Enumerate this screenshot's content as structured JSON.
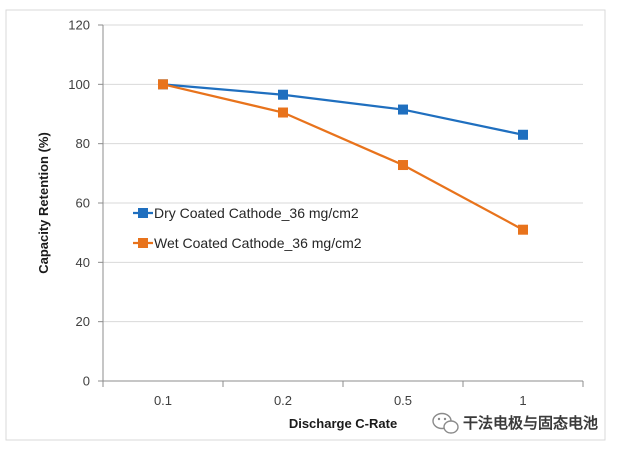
{
  "chart_data": {
    "type": "line",
    "categories": [
      "0.1",
      "0.2",
      "0.5",
      "1"
    ],
    "series": [
      {
        "name": "Dry Coated Cathode_36 mg/cm2",
        "values": [
          100,
          96.5,
          91.5,
          83
        ],
        "color": "#1f6fbf",
        "marker": "square"
      },
      {
        "name": "Wet Coated Cathode_36 mg/cm2",
        "values": [
          100,
          90.5,
          72.8,
          51
        ],
        "color": "#e8731c",
        "marker": "square"
      }
    ],
    "title": "",
    "xlabel": "Discharge C-Rate",
    "ylabel": "Capacity Retention (%)",
    "ylim": [
      0,
      120
    ],
    "yticks": [
      0,
      20,
      40,
      60,
      80,
      100,
      120
    ],
    "grid": "horizontal",
    "legend_position": "left-middle"
  },
  "watermark": {
    "text": "干法电极与固态电池",
    "icon": "wechat-logo-icon"
  }
}
